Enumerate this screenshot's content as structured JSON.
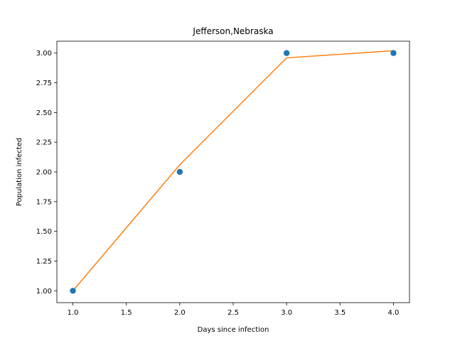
{
  "chart_data": {
    "type": "scatter",
    "title": "Jefferson,Nebraska",
    "xlabel": "Days since infection",
    "ylabel": "Population infected",
    "xlim": [
      0.85,
      4.15
    ],
    "ylim": [
      0.9,
      3.1
    ],
    "x_ticks": [
      "1.0",
      "1.5",
      "2.0",
      "2.5",
      "3.0",
      "3.5",
      "4.0"
    ],
    "y_ticks": [
      "1.00",
      "1.25",
      "1.50",
      "1.75",
      "2.00",
      "2.25",
      "2.50",
      "2.75",
      "3.00"
    ],
    "grid": false,
    "series": [
      {
        "kind": "scatter",
        "color": "#1f77b4",
        "x": [
          1,
          2,
          3,
          4
        ],
        "y": [
          1,
          2,
          3,
          3
        ]
      },
      {
        "kind": "line",
        "color": "#ff7f0e",
        "x": [
          1,
          2,
          3,
          4
        ],
        "y": [
          1.0,
          2.06,
          2.96,
          3.02
        ]
      }
    ]
  }
}
